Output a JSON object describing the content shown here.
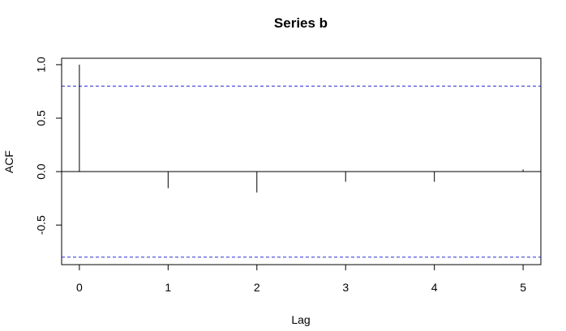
{
  "chart_data": {
    "type": "bar",
    "title": "Series  b",
    "xlabel": "Lag",
    "ylabel": "ACF",
    "x": [
      0,
      1,
      2,
      3,
      4,
      5
    ],
    "values": [
      1.0,
      -0.155,
      -0.195,
      -0.095,
      -0.095,
      0.02
    ],
    "xlim": [
      -0.2,
      5.2
    ],
    "ylim": [
      -0.87,
      1.06
    ],
    "x_ticks": [
      0,
      1,
      2,
      3,
      4,
      5
    ],
    "y_ticks": [
      -0.5,
      0.0,
      0.5,
      1.0
    ],
    "x_tick_labels": [
      "0",
      "1",
      "2",
      "3",
      "4",
      "5"
    ],
    "y_tick_labels": [
      "-0.5",
      "0.0",
      "0.5",
      "1.0"
    ],
    "confidence_bounds": [
      0.8,
      -0.8
    ],
    "zero_line": true,
    "grid": false,
    "colors": {
      "line": "#000000",
      "bounds": "#2b2bd1",
      "background": "#ffffff"
    }
  }
}
